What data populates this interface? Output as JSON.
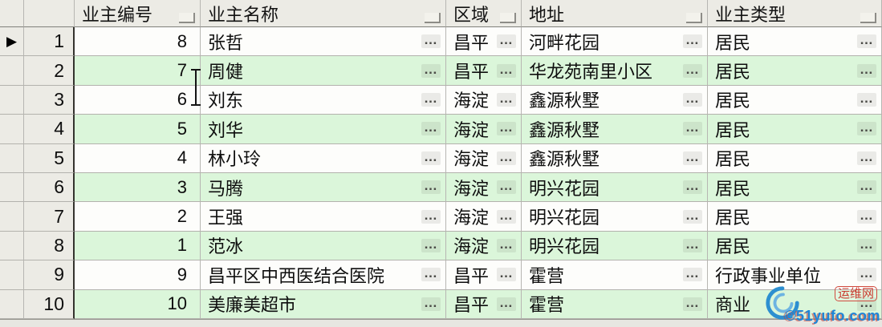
{
  "grid": {
    "selected_row_number": "1",
    "selector_glyph": "▶",
    "ellipsis_glyph": "…",
    "columns": [
      {
        "key": "owner_id",
        "label": "业主编号"
      },
      {
        "key": "owner_name",
        "label": "业主名称"
      },
      {
        "key": "region",
        "label": "区域"
      },
      {
        "key": "address",
        "label": "地址"
      },
      {
        "key": "owner_type",
        "label": "业主类型"
      }
    ],
    "rows": [
      {
        "row_number": "1",
        "owner_id": "8",
        "owner_name": "张哲",
        "region": "昌平",
        "address": "河畔花园",
        "owner_type": "居民"
      },
      {
        "row_number": "2",
        "owner_id": "7",
        "owner_name": "周健",
        "region": "昌平",
        "address": "华龙苑南里小区",
        "owner_type": "居民"
      },
      {
        "row_number": "3",
        "owner_id": "6",
        "owner_name": "刘东",
        "region": "海淀",
        "address": "鑫源秋墅",
        "owner_type": "居民"
      },
      {
        "row_number": "4",
        "owner_id": "5",
        "owner_name": "刘华",
        "region": "海淀",
        "address": "鑫源秋墅",
        "owner_type": "居民"
      },
      {
        "row_number": "5",
        "owner_id": "4",
        "owner_name": "林小玲",
        "region": "海淀",
        "address": "鑫源秋墅",
        "owner_type": "居民"
      },
      {
        "row_number": "6",
        "owner_id": "3",
        "owner_name": "马腾",
        "region": "海淀",
        "address": "明兴花园",
        "owner_type": "居民"
      },
      {
        "row_number": "7",
        "owner_id": "2",
        "owner_name": "王强",
        "region": "海淀",
        "address": "明兴花园",
        "owner_type": "居民"
      },
      {
        "row_number": "8",
        "owner_id": "1",
        "owner_name": "范冰",
        "region": "海淀",
        "address": "明兴花园",
        "owner_type": "居民"
      },
      {
        "row_number": "9",
        "owner_id": "9",
        "owner_name": "昌平区中西医结合医院",
        "region": "昌平",
        "address": "霍营",
        "owner_type": "行政事业单位"
      },
      {
        "row_number": "10",
        "owner_id": "10",
        "owner_name": "美廉美超市",
        "region": "昌平",
        "address": "霍营",
        "owner_type": "商业"
      }
    ]
  },
  "colors": {
    "row_stripe_green": "#dbf6da",
    "row_white": "#fdfdfb",
    "fixed_cell_bg": "#ecebe5",
    "grid_line": "#b7b6b2",
    "dark_divider": "#34332e",
    "text": "#0e0e0e",
    "watermark_red": "#c9392d",
    "watermark_blue": "#1d86d8"
  },
  "watermark": {
    "site_name": "运维网",
    "site_url": "©51yufo.com"
  }
}
